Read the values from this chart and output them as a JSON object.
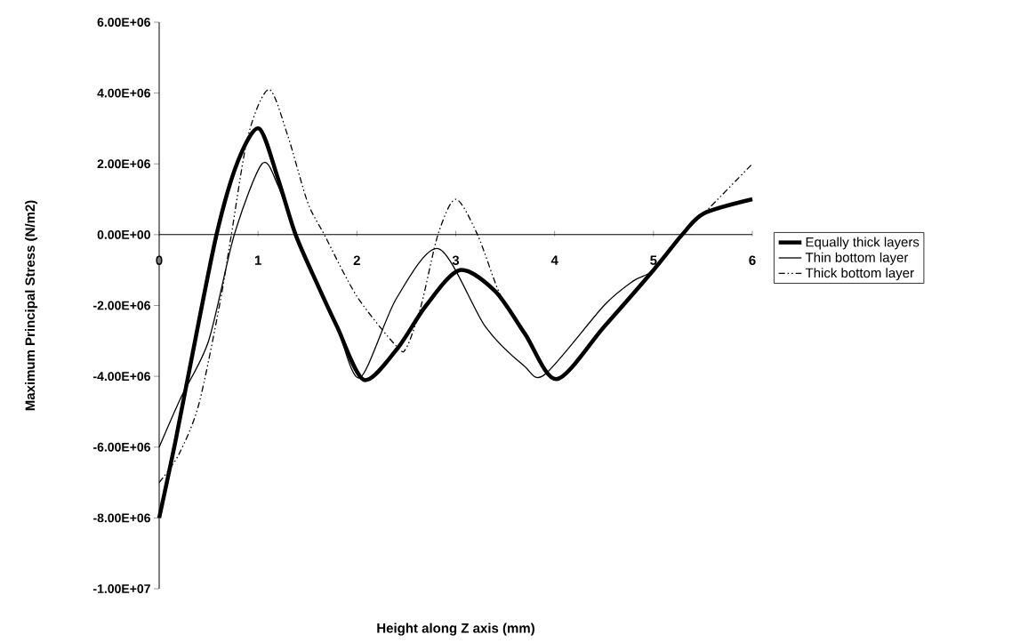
{
  "chart_data": {
    "type": "line",
    "xlabel": "Height along Z axis (mm)",
    "ylabel": "Maximum Principal Stress (N/m2)",
    "xlim": [
      0,
      6
    ],
    "ylim": [
      -10000000,
      6000000
    ],
    "xticks": [
      0,
      1,
      2,
      3,
      4,
      5,
      6
    ],
    "yticks": [
      {
        "value": -10000000,
        "label": "-1.00E+07"
      },
      {
        "value": -8000000,
        "label": "-8.00E+06"
      },
      {
        "value": -6000000,
        "label": "-6.00E+06"
      },
      {
        "value": -4000000,
        "label": "-4.00E+06"
      },
      {
        "value": -2000000,
        "label": "-2.00E+06"
      },
      {
        "value": 0,
        "label": "0.00E+00"
      },
      {
        "value": 2000000,
        "label": "2.00E+06"
      },
      {
        "value": 4000000,
        "label": "4.00E+06"
      },
      {
        "value": 6000000,
        "label": "6.00E+06"
      }
    ],
    "grid": false,
    "legend": "right",
    "marker": "none",
    "series": [
      {
        "name": "Equally thick layers",
        "color": "#000000",
        "line_style": "solid",
        "x": [
          0,
          0.16,
          0.3,
          0.58,
          0.8,
          1.01,
          1.2,
          1.38,
          1.6,
          1.8,
          2.07,
          2.4,
          2.7,
          3.04,
          3.4,
          3.7,
          4.02,
          4.5,
          5.0,
          5.29,
          5.51,
          6.0
        ],
        "values": [
          -8000000,
          -5900000,
          -3900000,
          0,
          2100000,
          3000000,
          1600000,
          0,
          -1400000,
          -2600000,
          -4100000,
          -3250000,
          -2000000,
          -1000000,
          -1600000,
          -2800000,
          -4080000,
          -2600000,
          -1000000,
          0,
          600000,
          1000000
        ]
      },
      {
        "name": "Thin bottom layer",
        "color": "#000000",
        "line_style": "solid",
        "x": [
          0,
          0.22,
          0.5,
          0.76,
          1.04,
          1.2,
          1.38,
          1.6,
          1.8,
          2.03,
          2.4,
          2.83,
          3.3,
          3.69,
          3.9,
          4.5,
          4.8,
          5.0,
          5.29,
          5.51,
          6.0
        ],
        "values": [
          -6000000,
          -4600000,
          -3000000,
          0,
          2000000,
          1400000,
          0,
          -1400000,
          -2600000,
          -4040000,
          -1800000,
          -400000,
          -2600000,
          -3700000,
          -3950000,
          -2000000,
          -1300000,
          -1000000,
          0,
          600000,
          1000000
        ]
      },
      {
        "name": "Thick bottom layer",
        "color": "#000000",
        "line_style": "dashdotdot",
        "x": [
          0,
          0.2,
          0.4,
          0.61,
          0.73,
          0.9,
          1.11,
          1.3,
          1.5,
          1.67,
          2.0,
          2.4,
          2.5,
          2.65,
          2.82,
          3.0,
          3.22,
          3.45,
          3.7,
          4.02,
          4.5,
          5.0,
          5.29,
          5.51,
          6.0
        ],
        "values": [
          -7000000,
          -6200000,
          -4800000,
          -2000000,
          0,
          2800000,
          4100000,
          2800000,
          930000,
          0,
          -1740000,
          -3150000,
          -3200000,
          -2000000,
          0,
          1000000,
          0,
          -1700000,
          -2800000,
          -4080000,
          -2600000,
          -1000000,
          0,
          600000,
          2000000
        ]
      }
    ]
  }
}
